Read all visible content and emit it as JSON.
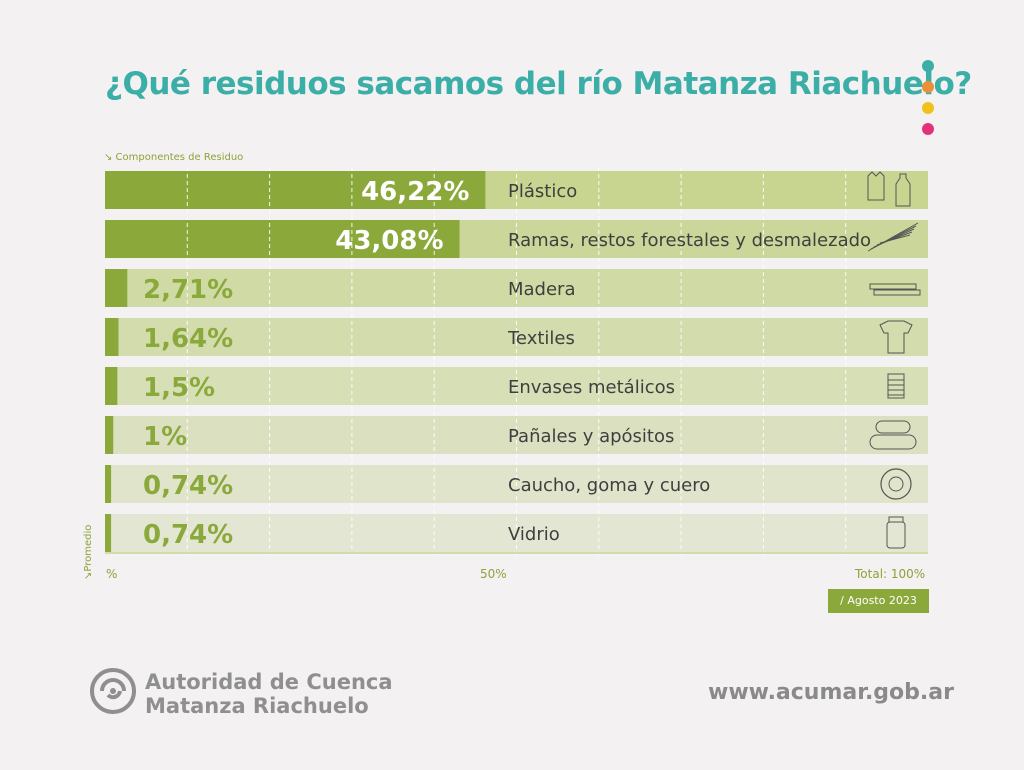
{
  "title": "¿Qué residuos sacamos del río Matanza Riachuelo?",
  "dot_colors": [
    "#3aaea7",
    "#e8903a",
    "#f3c11b",
    "#e2337a"
  ],
  "components_label": "↘ Componentes de Residuo",
  "promedio_label": "↘Promedio",
  "chart_data": {
    "type": "bar",
    "orientation": "horizontal",
    "categories": [
      "Plástico",
      "Ramas, restos forestales y desmalezado",
      "Madera",
      "Textiles",
      "Envases metálicos",
      "Pañales y apósitos",
      "Caucho, goma y cuero",
      "Vidrio"
    ],
    "values": [
      46.22,
      43.08,
      2.71,
      1.64,
      1.5,
      1,
      0.74,
      0.74
    ],
    "value_labels": [
      "46,22%",
      "43,08%",
      "2,71%",
      "1,64%",
      "1,5%",
      "1%",
      "0,74%",
      "0,74%"
    ],
    "icons": [
      "plastic-bag-bottle-icon",
      "branches-icon",
      "wood-planks-icon",
      "tshirt-icon",
      "tin-can-icon",
      "bandage-icon",
      "tire-icon",
      "glass-jar-icon"
    ],
    "xlim": [
      0,
      100
    ],
    "x_tick_labels": [
      "%",
      "50%",
      "Total: 100%"
    ],
    "grid": true,
    "colors": {
      "bar": "#8aa93a",
      "track_top": "#c7d591",
      "track_bottom": "#e3e6d3",
      "label_dark": "#ffffff",
      "label_light": "#8aa93a"
    }
  },
  "date_label": "/ Agosto 2023",
  "org_line1": "Autoridad de Cuenca",
  "org_line2": "Matanza Riachuelo",
  "website": "www.acumar.gob.ar"
}
